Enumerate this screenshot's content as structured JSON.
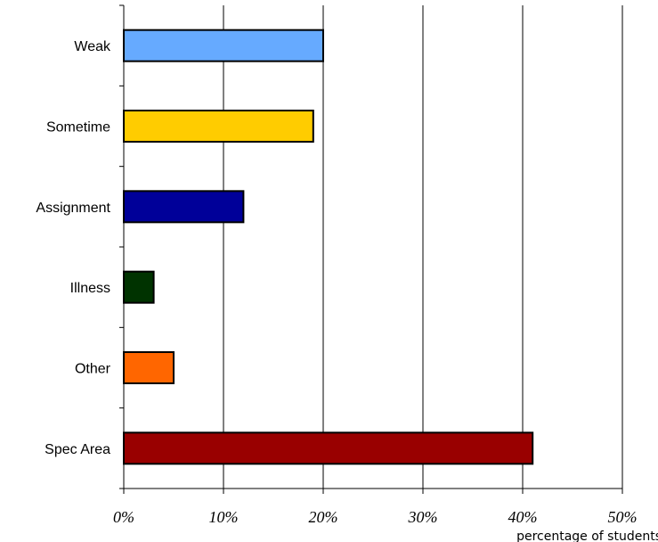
{
  "chart_data": {
    "type": "bar",
    "orientation": "horizontal",
    "categories": [
      "Weak",
      "Sometime",
      "Assignment",
      "Illness",
      "Other",
      "Spec Area"
    ],
    "values": [
      20,
      19,
      12,
      3,
      5,
      41
    ],
    "colors": [
      "#66aaff",
      "#ffcc00",
      "#000099",
      "#003300",
      "#ff6600",
      "#990000"
    ],
    "xlim": [
      0,
      50
    ],
    "xticks": [
      0,
      10,
      20,
      30,
      40,
      50
    ],
    "xtick_labels": [
      "0%",
      "10%",
      "20%",
      "30%",
      "40%",
      "50%"
    ],
    "xlabel": "percentage of students",
    "title": "",
    "grid": "vertical",
    "legend": "none"
  }
}
